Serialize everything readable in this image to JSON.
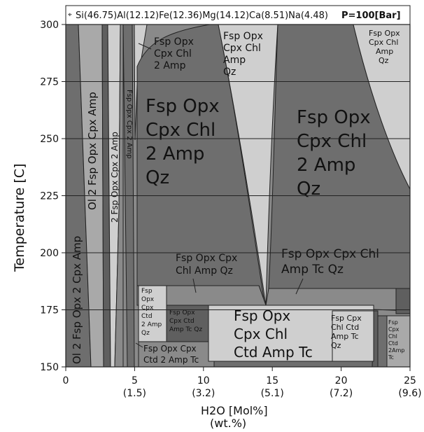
{
  "header": {
    "composition": "Si(46.75)Al(12.12)Fe(12.36)Mg(14.12)Ca(8.51)Na(4.48)",
    "pressure": "P=100[Bar]",
    "corner_icon": "crosshair-icon"
  },
  "axes": {
    "x_title": "H2O [Mol%]",
    "x_subtitle": "(wt.%)",
    "y_title": "Temperature [C]",
    "x_ticks": [
      {
        "mol": "0",
        "wt": ""
      },
      {
        "mol": "5",
        "wt": "(1.5)"
      },
      {
        "mol": "10",
        "wt": "(3.2)"
      },
      {
        "mol": "15",
        "wt": "(5.1)"
      },
      {
        "mol": "20",
        "wt": "(7.2)"
      },
      {
        "mol": "25",
        "wt": "(9.6)"
      }
    ],
    "y_ticks": [
      "150",
      "175",
      "200",
      "225",
      "250",
      "275",
      "300"
    ],
    "x_range": [
      0,
      25
    ],
    "y_range": [
      150,
      300
    ]
  },
  "colors": {
    "very_dark": "#5f5f5f",
    "dark": "#6e6e6e",
    "medium": "#8a8a8a",
    "medium_light": "#a9a9a9",
    "light": "#cfcfcf",
    "outline": "#222222"
  },
  "fields": {
    "ol2_fsp_opx_2cpx_amp": "Ol 2 Fsp Opx 2 Cpx Amp",
    "ol_fsp_opx_cpx_amp": "Ol 2 Fsp Opx Cpx Amp",
    "fsp_opx_2cpx_2amp": "2 Fsp Opx Cpx 2 Amp",
    "fsp_opx_cpx_2amp_narrow": "Fsp Opx Cpx 2 Amp",
    "fsp_opx_cpx_chl_2amp_small": [
      "Fsp Opx",
      "Cpx Chl",
      "2 Amp"
    ],
    "fsp_opx_cpx_chl_2amp_qz_big_left": [
      "Fsp Opx",
      "Cpx Chl",
      "2 Amp",
      "Qz"
    ],
    "fsp_opx_cpx_chl_amp_qz_top": [
      "Fsp Opx",
      "Cpx Chl",
      "Amp",
      "Qz"
    ],
    "fsp_opx_cpx_chl_2amp_qz_big_right": [
      "Fsp Opx",
      "Cpx Chl",
      "2 Amp",
      "Qz"
    ],
    "fsp_opx_cpx_chl_amp_qz_top_right": [
      "Fsp Opx",
      "Cpx Chl",
      "Amp",
      "Qz"
    ],
    "fsp_opx_cpx_chl_amp_qz_mid": [
      "Fsp Opx Cpx",
      "Chl Amp Qz"
    ],
    "fsp_opx_cpx_chl_amp_tc_qz_mid": [
      "Fsp Opx Cpx Chl",
      "Amp Tc Qz"
    ],
    "fsp_opx_cpx_ctd_2amp_qz_small": [
      "Fsp",
      "Opx",
      "Cpx",
      "Ctd",
      "2 Amp",
      "Qz"
    ],
    "fsp_opx_cpx_ctd_amp_tc_qz_small": [
      "Fsp Opx",
      "Cpx Ctd",
      "Amp Tc Qz"
    ],
    "fsp_opx_cpx_ctd_2amp_tc": [
      "Fsp Opx Cpx",
      "Ctd 2 Amp Tc"
    ],
    "fsp_opx_cpx_chl_ctd_amp_tc_big": [
      "Fsp Opx",
      "Cpx Chl",
      "Ctd Amp Tc"
    ],
    "fsp_cpx_chl_ctd_amp_tc_qz": [
      "Fsp Cpx",
      "Chl Ctd",
      "Amp Tc",
      "Qz"
    ],
    "fsp_cpx_chl_ctd_2amp_tc_tiny": [
      "Fsp",
      "Cpx",
      "Chl",
      "Ctd",
      "2Amp",
      "Tc"
    ]
  }
}
